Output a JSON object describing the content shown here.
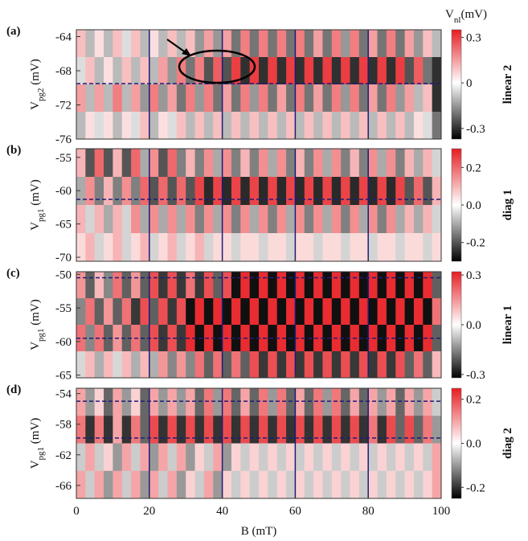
{
  "chart_data": [
    {
      "type": "heatmap",
      "panel": "(a)",
      "ylabel": [
        "V",
        "pg2",
        " (mV)"
      ],
      "xlim": [
        0,
        100
      ],
      "ylim": [
        -76,
        -63.2
      ],
      "yticks": [
        -64,
        -68,
        -72,
        -76
      ],
      "clabel": "linear 2",
      "ctitle": [
        "V",
        "nl",
        "(mV)"
      ],
      "clim": [
        -0.37,
        0.35
      ],
      "cticks": [
        0.3,
        0,
        -0.3
      ],
      "vlines": [
        20,
        40,
        60,
        80
      ],
      "hlines": [
        -69.5
      ],
      "z": [
        [
          0.1,
          -0.1,
          0.05,
          -0.1,
          0.1,
          -0.05,
          0.1,
          -0.1,
          0.05,
          -0.1,
          0.1,
          -0.1,
          0.1,
          -0.15,
          0.15,
          -0.15,
          0.15,
          -0.2,
          0.2,
          -0.2,
          0.2,
          -0.2,
          0.2,
          -0.2,
          0.2,
          -0.2,
          0.15,
          -0.2,
          0.2,
          -0.15,
          0.2,
          -0.2,
          0.15,
          -0.2,
          0.2,
          -0.2,
          0.15,
          -0.15,
          0.1,
          -0.1
        ],
        [
          -0.05,
          0.1,
          -0.1,
          0.05,
          -0.1,
          0.1,
          -0.1,
          0.1,
          -0.1,
          0.15,
          -0.15,
          0.2,
          -0.2,
          0.2,
          -0.25,
          0.25,
          -0.25,
          0.3,
          -0.3,
          0.3,
          -0.3,
          0.3,
          -0.3,
          0.3,
          -0.3,
          0.3,
          -0.3,
          0.3,
          -0.3,
          0.3,
          -0.3,
          0.3,
          -0.3,
          0.3,
          -0.3,
          0.3,
          -0.25,
          0.25,
          -0.2,
          -0.3
        ],
        [
          0.15,
          -0.1,
          0.15,
          -0.1,
          0.2,
          -0.1,
          0.15,
          -0.15,
          0.2,
          -0.15,
          0.15,
          -0.2,
          0.2,
          -0.15,
          0.2,
          -0.2,
          0.15,
          -0.2,
          0.2,
          -0.15,
          0.2,
          -0.2,
          0.15,
          -0.2,
          0.2,
          -0.2,
          0.15,
          -0.2,
          0.2,
          -0.15,
          0.2,
          -0.2,
          0.15,
          -0.2,
          0.2,
          -0.15,
          0.15,
          -0.1,
          0.1,
          -0.3
        ],
        [
          -0.1,
          0.05,
          -0.05,
          0.05,
          -0.1,
          0.05,
          -0.05,
          0.1,
          -0.1,
          0.05,
          -0.05,
          0.1,
          -0.1,
          0.1,
          -0.1,
          0.1,
          -0.1,
          0.1,
          -0.1,
          0.1,
          -0.1,
          0.1,
          -0.1,
          0.1,
          -0.1,
          0.1,
          -0.1,
          0.1,
          -0.1,
          0.1,
          -0.1,
          0.1,
          -0.1,
          0.1,
          -0.1,
          0.1,
          -0.1,
          0.05,
          -0.05,
          -0.2
        ]
      ]
    },
    {
      "type": "heatmap",
      "panel": "(b)",
      "ylabel": [
        "V",
        "pg1",
        " (mV)"
      ],
      "xlim": [
        0,
        100
      ],
      "ylim": [
        -70.6,
        -53.7
      ],
      "yticks": [
        -55,
        -60,
        -65,
        -70
      ],
      "clabel": "diag 1",
      "clim": [
        -0.3,
        0.3
      ],
      "cticks": [
        0.2,
        {
          "value": 0,
          "label": "0.0"
        },
        -0.2
      ],
      "vlines": [
        20,
        40,
        60,
        80
      ],
      "hlines": [
        -61.3
      ],
      "z": [
        [
          0.1,
          -0.2,
          0.2,
          -0.2,
          0.1,
          -0.2,
          0.2,
          -0.1,
          0.15,
          -0.2,
          0.2,
          -0.15,
          0.1,
          -0.15,
          0.15,
          -0.1,
          0.15,
          -0.15,
          0.1,
          -0.15,
          0.15,
          -0.1,
          0.15,
          -0.15,
          0.1,
          -0.15,
          0.15,
          -0.1,
          0.15,
          -0.15,
          0.1,
          -0.15,
          0.15,
          -0.1,
          0.15,
          -0.15,
          0.1,
          -0.1,
          0.1,
          -0.05
        ],
        [
          -0.1,
          0.15,
          -0.15,
          0.1,
          -0.15,
          0.15,
          -0.15,
          0.2,
          -0.2,
          0.2,
          -0.2,
          0.2,
          -0.2,
          0.25,
          -0.25,
          0.25,
          -0.25,
          0.25,
          -0.25,
          0.25,
          -0.25,
          0.25,
          -0.25,
          0.25,
          -0.25,
          0.25,
          -0.25,
          0.25,
          -0.25,
          0.25,
          -0.25,
          0.25,
          -0.25,
          0.25,
          -0.25,
          0.25,
          -0.2,
          0.2,
          -0.2,
          0.1
        ],
        [
          0.1,
          -0.05,
          0.1,
          -0.1,
          0.1,
          -0.05,
          0.15,
          -0.1,
          0.15,
          -0.1,
          0.15,
          -0.1,
          0.15,
          -0.15,
          0.15,
          -0.1,
          0.15,
          -0.15,
          0.15,
          -0.1,
          0.15,
          -0.15,
          0.15,
          -0.1,
          0.15,
          -0.15,
          0.15,
          -0.1,
          0.15,
          -0.15,
          0.15,
          -0.1,
          0.15,
          -0.15,
          0.15,
          -0.1,
          0.1,
          -0.1,
          0.1,
          -0.05
        ],
        [
          0.05,
          0.1,
          -0.05,
          0.05,
          0.1,
          -0.05,
          0.05,
          0.1,
          -0.05,
          0.05,
          0.1,
          -0.05,
          0.05,
          0.1,
          -0.05,
          0.05,
          0.05,
          -0.05,
          0.05,
          0.05,
          -0.05,
          0.05,
          0.05,
          -0.05,
          0.05,
          0.05,
          -0.05,
          0.05,
          0.05,
          -0.05,
          0.05,
          0.05,
          -0.05,
          0.05,
          0.05,
          -0.05,
          0.05,
          0.05,
          -0.05,
          0.05
        ]
      ]
    },
    {
      "type": "heatmap",
      "panel": "(c)",
      "ylabel": [
        "V",
        "pg1",
        " (mV)"
      ],
      "xlim": [
        0,
        100
      ],
      "ylim": [
        -65.4,
        -49.6
      ],
      "yticks": [
        -50,
        -55,
        -60,
        -65
      ],
      "clabel": "linear 1",
      "clim": [
        -0.32,
        0.32
      ],
      "cticks": [
        0.3,
        {
          "value": 0,
          "label": "0.0"
        },
        -0.3
      ],
      "vlines": [
        20,
        40,
        60,
        80
      ],
      "hlines": [
        -50.5,
        -59.5
      ],
      "z": [
        [
          0.15,
          -0.2,
          0.1,
          -0.15,
          0.2,
          -0.2,
          0.15,
          -0.2,
          0.25,
          -0.25,
          0.25,
          -0.25,
          0.2,
          -0.25,
          0.25,
          -0.2,
          0.25,
          -0.3,
          0.3,
          -0.3,
          0.3,
          -0.3,
          0.3,
          -0.3,
          0.3,
          -0.3,
          0.3,
          -0.3,
          0.3,
          -0.3,
          0.3,
          -0.3,
          0.3,
          -0.3,
          0.3,
          -0.3,
          0.3,
          -0.3,
          0.3,
          -0.2
        ],
        [
          -0.15,
          0.2,
          -0.2,
          0.15,
          -0.2,
          0.2,
          -0.25,
          0.25,
          -0.2,
          0.25,
          -0.25,
          0.25,
          -0.3,
          0.3,
          -0.3,
          0.3,
          -0.3,
          0.3,
          -0.3,
          0.3,
          -0.3,
          0.3,
          -0.3,
          0.3,
          -0.3,
          0.3,
          -0.3,
          0.3,
          -0.3,
          0.3,
          -0.3,
          0.3,
          -0.3,
          0.3,
          -0.3,
          0.3,
          -0.3,
          0.3,
          -0.3,
          0.2
        ],
        [
          0.2,
          -0.15,
          0.2,
          -0.2,
          0.15,
          -0.2,
          0.2,
          -0.2,
          0.25,
          -0.25,
          0.25,
          -0.25,
          0.3,
          -0.3,
          0.3,
          -0.3,
          0.3,
          -0.3,
          0.3,
          -0.3,
          0.3,
          -0.3,
          0.3,
          -0.3,
          0.3,
          -0.3,
          0.3,
          -0.3,
          0.3,
          -0.3,
          0.3,
          -0.3,
          0.3,
          -0.3,
          0.3,
          -0.3,
          0.3,
          -0.3,
          0.3,
          -0.2
        ],
        [
          -0.05,
          0.1,
          -0.1,
          0.1,
          -0.05,
          0.1,
          -0.1,
          0.1,
          -0.1,
          0.15,
          -0.15,
          0.15,
          -0.15,
          0.2,
          -0.2,
          0.2,
          -0.2,
          0.2,
          -0.2,
          0.25,
          -0.25,
          0.25,
          -0.25,
          0.25,
          -0.25,
          0.25,
          -0.25,
          0.25,
          -0.25,
          0.25,
          -0.25,
          0.25,
          -0.25,
          0.25,
          -0.25,
          0.25,
          -0.2,
          0.2,
          -0.2,
          0.1
        ]
      ]
    },
    {
      "type": "heatmap",
      "panel": "(d)",
      "ylabel": [
        "V",
        "pg1",
        " (mV)"
      ],
      "xlabel": "B (mT)",
      "xlim": [
        0,
        100
      ],
      "xticks": [
        0,
        20,
        40,
        60,
        80,
        100
      ],
      "ylim": [
        -67.7,
        -53.3
      ],
      "yticks": [
        -54,
        -58,
        -62,
        -66
      ],
      "clabel": "diag 2",
      "clim": [
        -0.25,
        0.25
      ],
      "cticks": [
        0.2,
        {
          "value": 0,
          "label": "0.0"
        },
        -0.2
      ],
      "vlines": [
        20,
        40,
        60,
        80
      ],
      "hlines": [
        -55,
        -59.8
      ],
      "z": [
        [
          0.1,
          -0.1,
          0.05,
          -0.15,
          0.1,
          -0.1,
          0.05,
          -0.15,
          0.1,
          -0.1,
          0.1,
          -0.1,
          0.1,
          -0.15,
          0.15,
          -0.1,
          0.15,
          -0.15,
          0.1,
          -0.15,
          0.15,
          -0.1,
          0.15,
          -0.15,
          0.1,
          -0.15,
          0.15,
          -0.1,
          0.15,
          -0.15,
          0.1,
          -0.15,
          0.1,
          -0.1,
          0.1,
          -0.15,
          0.1,
          -0.1,
          0.1,
          -0.05
        ],
        [
          0.15,
          -0.2,
          0.15,
          -0.2,
          0.1,
          -0.2,
          0.15,
          -0.15,
          0.2,
          -0.2,
          0.2,
          -0.2,
          0.2,
          -0.2,
          0.2,
          -0.2,
          0.2,
          -0.2,
          0.2,
          -0.2,
          0.2,
          -0.2,
          0.2,
          -0.2,
          0.2,
          -0.2,
          0.2,
          -0.2,
          0.2,
          -0.2,
          0.2,
          -0.2,
          0.15,
          -0.2,
          0.2,
          -0.15,
          0.2,
          -0.15,
          0.15,
          -0.1
        ],
        [
          -0.05,
          0.1,
          -0.05,
          0.05,
          -0.1,
          0.1,
          -0.05,
          0.1,
          -0.1,
          0.1,
          -0.05,
          0.1,
          -0.1,
          0.05,
          -0.05,
          0.1,
          -0.1,
          0.05,
          -0.05,
          0.05,
          -0.05,
          0.05,
          -0.05,
          0.05,
          -0.05,
          0.05,
          -0.05,
          0.05,
          -0.05,
          0.05,
          -0.05,
          0.05,
          -0.05,
          0.05,
          -0.05,
          0.05,
          -0.05,
          0.05,
          -0.05,
          0.1
        ],
        [
          0.1,
          -0.05,
          0.1,
          -0.1,
          0.1,
          -0.05,
          0.1,
          -0.1,
          0.1,
          -0.05,
          0.1,
          -0.1,
          0.05,
          -0.05,
          0.1,
          -0.1,
          0.05,
          -0.05,
          0.05,
          -0.05,
          0.05,
          -0.05,
          0.05,
          -0.05,
          0.05,
          -0.05,
          0.05,
          -0.05,
          0.05,
          -0.05,
          0.05,
          -0.05,
          0.05,
          -0.05,
          0.05,
          -0.05,
          0.05,
          -0.05,
          0.05,
          0.1
        ]
      ]
    }
  ]
}
